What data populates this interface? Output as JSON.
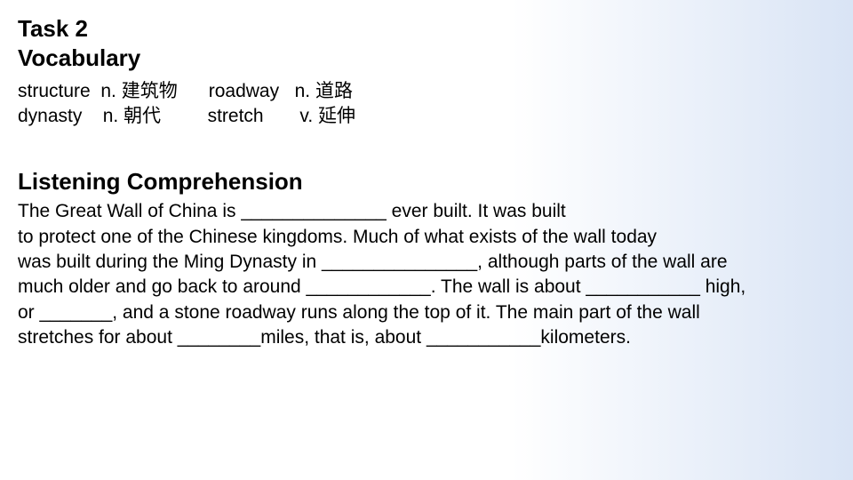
{
  "colors": {
    "text": "#000000",
    "bg_left": "#ffffff",
    "bg_right": "#d9e4f5"
  },
  "fonts": {
    "heading_size": 26,
    "body_size": 21,
    "family": "Arial"
  },
  "task": {
    "title_line1": "Task 2",
    "title_line2": "Vocabulary"
  },
  "vocab": {
    "row1": "structure  n. 建筑物      roadway   n. 道路",
    "row2": "dynasty    n. 朝代         stretch       v. 延伸"
  },
  "listening": {
    "title": "Listening Comprehension",
    "line1": "The Great Wall of China is ______________ ever built. It was built",
    "line2": " to protect one of the Chinese kingdoms. Much of what exists of the wall today",
    "line3": " was built during the Ming Dynasty in _______________,  although parts of the wall are",
    "line4": "much older and go back to around ____________. The wall is about ___________ high,",
    "line5": "or _______, and a stone roadway runs along the top of it. The main part of the wall",
    "line6": "stretches for about ________miles, that is, about ___________kilometers."
  }
}
